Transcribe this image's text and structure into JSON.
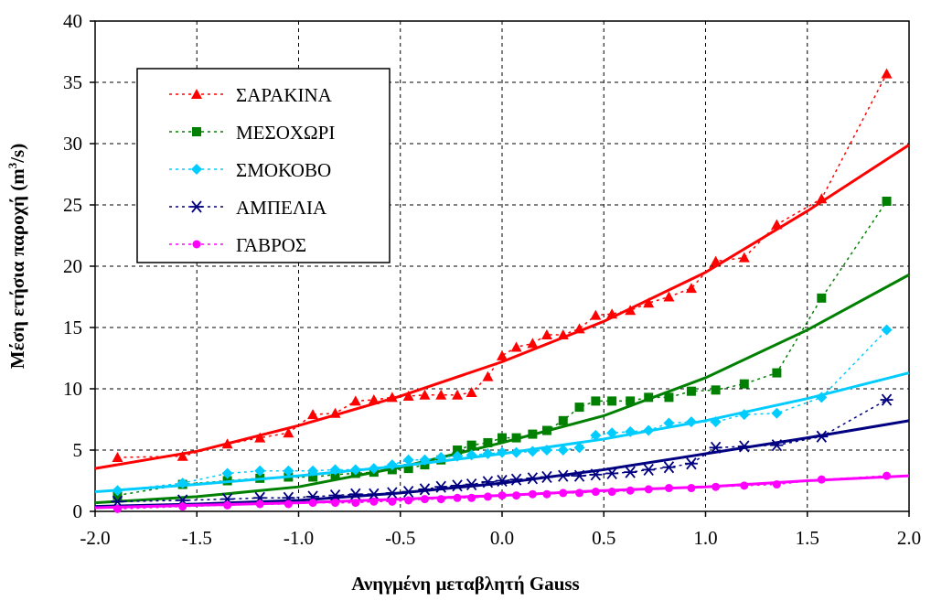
{
  "chart_data": {
    "type": "line",
    "title": "",
    "xlabel": "Ανηγμένη μεταβλητή Gauss",
    "ylabel": {
      "main": "Μέση ετήσια παροχή (m",
      "sup": "3",
      "tail": "/s)"
    },
    "xlim": [
      -2.0,
      2.0
    ],
    "ylim": [
      0,
      40
    ],
    "xticks": [
      -2.0,
      -1.5,
      -1.0,
      -0.5,
      0.0,
      0.5,
      1.0,
      1.5,
      2.0
    ],
    "xtick_labels": [
      "-2.0",
      "-1.5",
      "-1.0",
      "-0.5",
      "0.0",
      "0.5",
      "1.0",
      "1.5",
      "2.0"
    ],
    "yticks": [
      0,
      5,
      10,
      15,
      20,
      25,
      30,
      35,
      40
    ],
    "ytick_labels": [
      "0",
      "5",
      "10",
      "15",
      "20",
      "25",
      "30",
      "35",
      "40"
    ],
    "grid": true,
    "legend_position": "top-left",
    "x": [
      -1.89,
      -1.57,
      -1.35,
      -1.19,
      -1.05,
      -0.93,
      -0.82,
      -0.72,
      -0.63,
      -0.54,
      -0.46,
      -0.38,
      -0.3,
      -0.22,
      -0.15,
      -0.07,
      0.0,
      0.07,
      0.15,
      0.22,
      0.3,
      0.38,
      0.46,
      0.54,
      0.63,
      0.72,
      0.82,
      0.93,
      1.05,
      1.19,
      1.35,
      1.57,
      1.89
    ],
    "series": [
      {
        "name": "ΣΑΡΑΚΙΝΑ",
        "color": "#ff0000",
        "marker": "triangle",
        "values": [
          4.4,
          4.5,
          5.5,
          6.0,
          6.4,
          7.9,
          8.0,
          9.0,
          9.1,
          9.3,
          9.4,
          9.5,
          9.5,
          9.5,
          9.7,
          11.0,
          12.7,
          13.4,
          13.7,
          14.4,
          14.4,
          14.9,
          16.0,
          16.1,
          16.4,
          17.0,
          17.5,
          18.2,
          20.4,
          20.7,
          23.4,
          25.5,
          35.7
        ],
        "fit_x": [
          -2.0,
          -1.5,
          -1.0,
          -0.5,
          0.0,
          0.5,
          1.0,
          1.5,
          2.0
        ],
        "fit_y": [
          3.5,
          4.9,
          7.0,
          9.4,
          12.2,
          15.5,
          19.5,
          24.5,
          29.9
        ]
      },
      {
        "name": "ΜΕΣΟΧΩΡΙ",
        "color": "#008000",
        "marker": "square",
        "values": [
          1.3,
          2.2,
          2.5,
          2.7,
          2.8,
          2.8,
          3.0,
          3.1,
          3.2,
          3.4,
          3.5,
          3.8,
          4.2,
          5.0,
          5.4,
          5.6,
          6.0,
          6.0,
          6.3,
          6.6,
          7.4,
          8.5,
          9.0,
          9.0,
          9.0,
          9.3,
          9.3,
          9.8,
          9.9,
          10.4,
          11.3,
          17.4,
          25.3
        ],
        "fit_x": [
          -2.0,
          -1.5,
          -1.0,
          -0.5,
          0.0,
          0.5,
          1.0,
          1.5,
          2.0
        ],
        "fit_y": [
          0.7,
          1.2,
          2.0,
          3.6,
          5.6,
          7.8,
          10.9,
          14.8,
          19.3
        ]
      },
      {
        "name": "ΣΜΟΚΟΒΟ",
        "color": "#00ccff",
        "marker": "diamond",
        "values": [
          1.7,
          2.3,
          3.1,
          3.3,
          3.3,
          3.3,
          3.4,
          3.4,
          3.5,
          3.8,
          4.2,
          4.2,
          4.4,
          4.5,
          4.6,
          4.7,
          4.8,
          4.8,
          4.9,
          5.0,
          5.0,
          5.2,
          6.2,
          6.4,
          6.5,
          6.6,
          7.2,
          7.3,
          7.3,
          7.9,
          8.0,
          9.3,
          14.8
        ],
        "fit_x": [
          -2.0,
          -1.5,
          -1.0,
          -0.5,
          0.0,
          0.5,
          1.0,
          1.5,
          2.0
        ],
        "fit_y": [
          1.6,
          2.2,
          2.9,
          3.7,
          4.7,
          5.9,
          7.4,
          9.2,
          11.3
        ]
      },
      {
        "name": "ΑΜΠΕΛΙΑ",
        "color": "#000080",
        "marker": "asterisk",
        "values": [
          0.8,
          0.9,
          1.0,
          1.1,
          1.1,
          1.2,
          1.3,
          1.4,
          1.4,
          1.5,
          1.6,
          1.8,
          2.0,
          2.1,
          2.2,
          2.4,
          2.5,
          2.6,
          2.7,
          2.8,
          2.9,
          2.9,
          3.0,
          3.1,
          3.2,
          3.4,
          3.6,
          3.9,
          5.2,
          5.3,
          5.4,
          6.1,
          9.1
        ],
        "fit_x": [
          -2.0,
          -1.5,
          -1.0,
          -0.5,
          0.0,
          0.5,
          1.0,
          1.5,
          2.0
        ],
        "fit_y": [
          0.4,
          0.6,
          0.9,
          1.5,
          2.3,
          3.4,
          4.7,
          6.0,
          7.4
        ]
      },
      {
        "name": "ΓΑΒΡΟΣ",
        "color": "#ff00ff",
        "marker": "circle",
        "values": [
          0.2,
          0.4,
          0.5,
          0.6,
          0.6,
          0.7,
          0.7,
          0.7,
          0.8,
          0.8,
          0.9,
          1.0,
          1.0,
          1.1,
          1.1,
          1.2,
          1.3,
          1.3,
          1.4,
          1.4,
          1.5,
          1.5,
          1.6,
          1.6,
          1.7,
          1.8,
          1.9,
          1.9,
          2.0,
          2.1,
          2.2,
          2.6,
          2.9
        ],
        "fit_x": [
          -2.0,
          -1.5,
          -1.0,
          -0.5,
          0.0,
          0.5,
          1.0,
          1.5,
          2.0
        ],
        "fit_y": [
          0.3,
          0.5,
          0.7,
          1.0,
          1.3,
          1.7,
          2.0,
          2.5,
          2.9
        ]
      }
    ]
  }
}
